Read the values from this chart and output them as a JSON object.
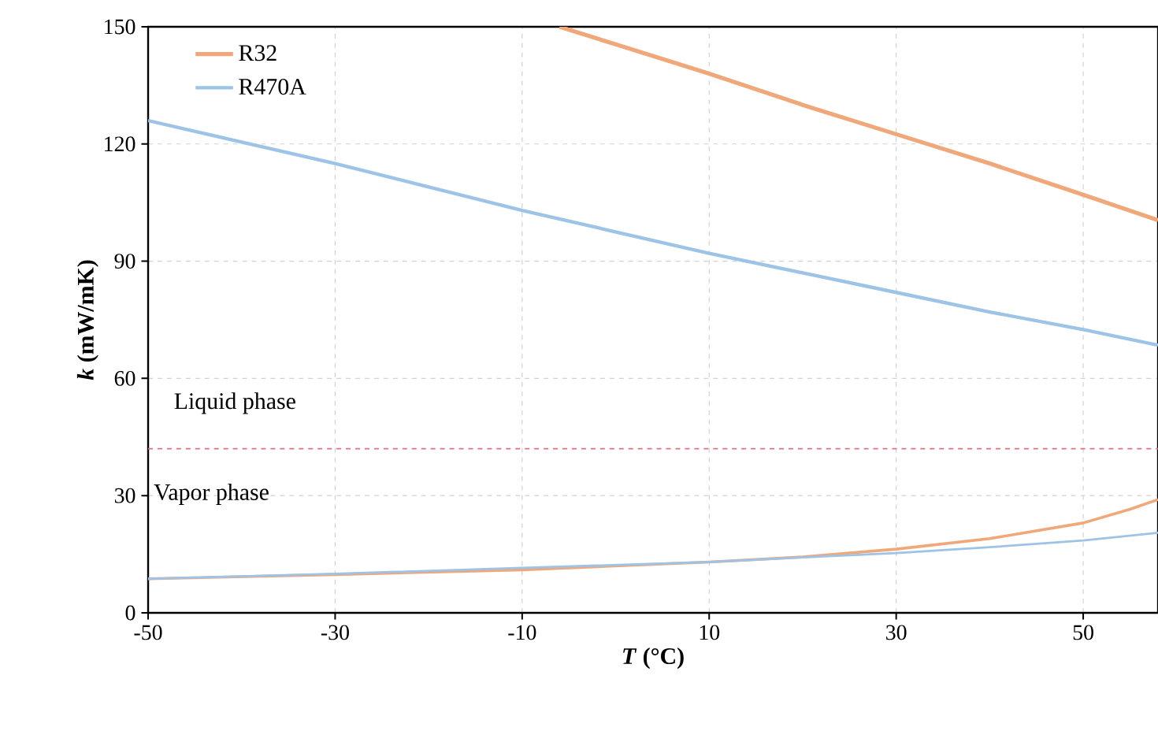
{
  "chart_data": {
    "type": "line",
    "xlabel": "*T* (°C)",
    "ylabel": "*k* (mW/mK)",
    "xlim": [
      -50,
      58
    ],
    "ylim": [
      0,
      150
    ],
    "xticks": [
      -50,
      -30,
      -10,
      10,
      30,
      50
    ],
    "yticks": [
      0,
      30,
      60,
      90,
      120,
      150
    ],
    "grid": true,
    "legend": "top left",
    "marker": "none",
    "line_style": "solid",
    "series": [
      {
        "name": "R32",
        "color": "#f0a77a",
        "x": [
          -6,
          0,
          10,
          20,
          30,
          40,
          50,
          58
        ],
        "values": [
          150,
          145.5,
          138,
          130,
          122.5,
          115,
          107,
          100.5
        ]
      },
      {
        "name": "R470A",
        "color": "#9dc3e6",
        "x": [
          -50,
          -40,
          -30,
          -20,
          -10,
          0,
          10,
          20,
          30,
          40,
          50,
          58
        ],
        "values": [
          126,
          120.5,
          115,
          109,
          103,
          97.5,
          92,
          87,
          82,
          77,
          72.5,
          68.5
        ]
      },
      {
        "color": "#f0a77a",
        "x": [
          -50,
          -30,
          -10,
          10,
          20,
          30,
          40,
          50,
          55,
          58
        ],
        "values": [
          8.7,
          9.8,
          11,
          13,
          14.3,
          16.3,
          19,
          23,
          26.5,
          29
        ]
      },
      {
        "color": "#9dc3e6",
        "x": [
          -50,
          -30,
          -10,
          10,
          20,
          30,
          40,
          50,
          58
        ],
        "values": [
          8.7,
          10,
          11.5,
          13,
          14.2,
          15.3,
          16.8,
          18.5,
          20.5
        ]
      }
    ],
    "ref_lines": [
      {
        "axis": "y",
        "value": 42,
        "color": "#e07080",
        "line_style": "dashed"
      }
    ],
    "annotations": [
      "Liquid phase",
      "Vapor phase"
    ]
  }
}
